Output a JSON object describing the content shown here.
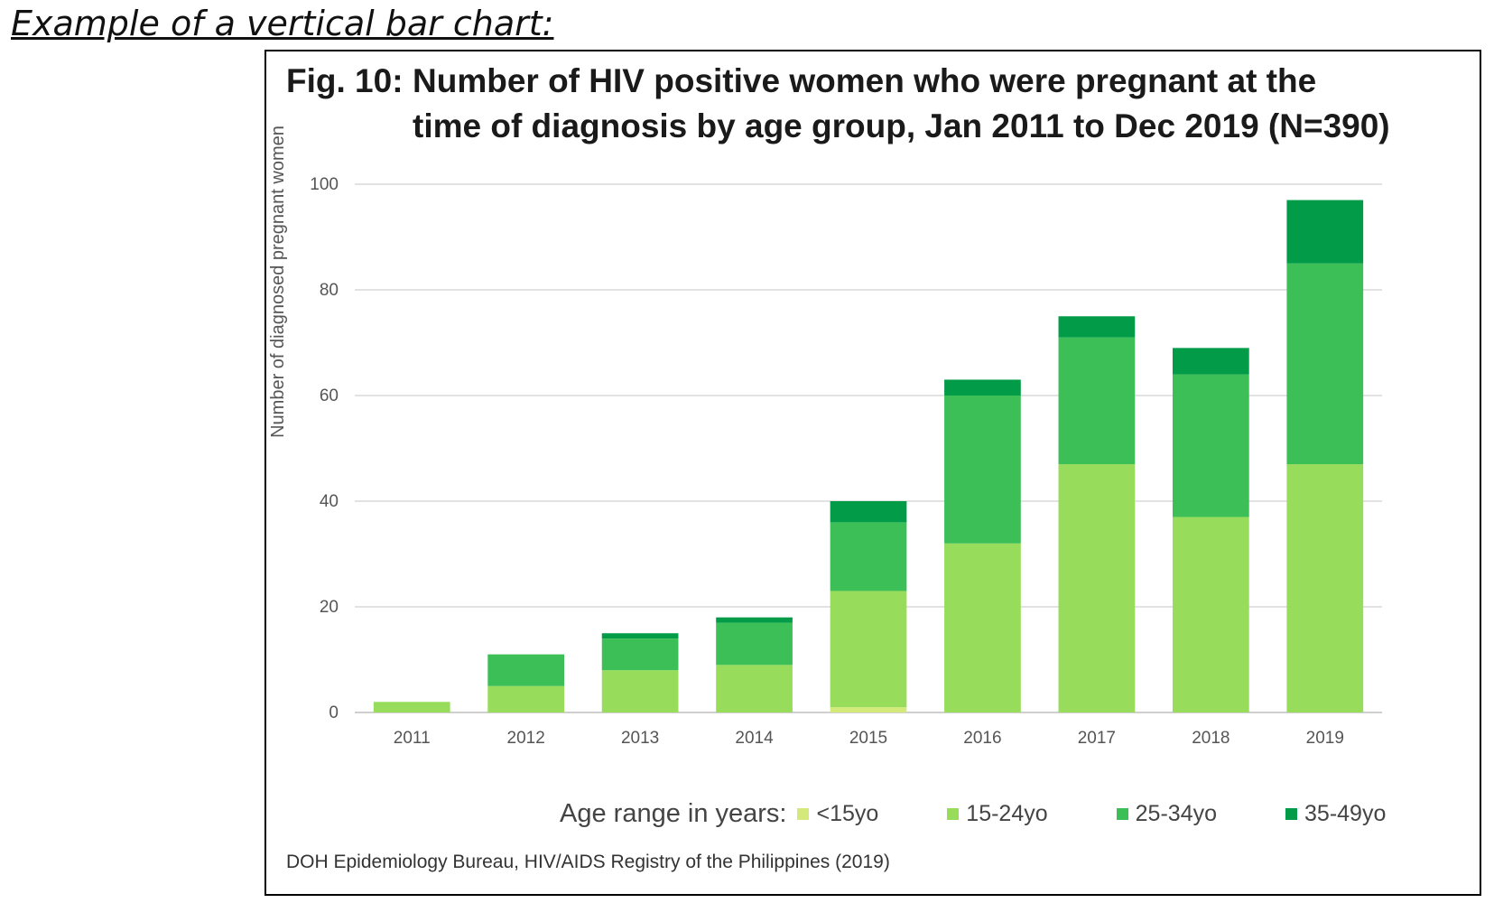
{
  "caption": "Example of a vertical bar chart:",
  "source": "DOH Epidemiology Bureau, HIV/AIDS Registry of the Philippines (2019)",
  "colors": {
    "gridline": "#d9d9d9",
    "axis": "#bfbfbf",
    "series": [
      "#d3ea7a",
      "#97dc5a",
      "#3dbf57",
      "#029c49"
    ]
  },
  "chart_data": {
    "type": "bar",
    "stacked": true,
    "title_prefix": "Fig. 10:",
    "title_line1": "Number of HIV positive women who were pregnant at the",
    "title_line2": "time of diagnosis by age group, Jan 2011 to Dec 2019 (N=390)",
    "xlabel": "",
    "ylabel": "Number of diagnosed pregnant women",
    "ylim": [
      0,
      100
    ],
    "yticks": [
      0,
      20,
      40,
      60,
      80,
      100
    ],
    "grid": true,
    "legend_title": "Age range in years:",
    "legend_position": "bottom",
    "categories": [
      "2011",
      "2012",
      "2013",
      "2014",
      "2015",
      "2016",
      "2017",
      "2018",
      "2019"
    ],
    "series": [
      {
        "name": "<15yo",
        "values": [
          0,
          0,
          0,
          0,
          1,
          0,
          0,
          0,
          0
        ]
      },
      {
        "name": "15-24yo",
        "values": [
          2,
          5,
          8,
          9,
          22,
          32,
          47,
          37,
          47
        ]
      },
      {
        "name": "25-34yo",
        "values": [
          0,
          6,
          6,
          8,
          13,
          28,
          24,
          27,
          38
        ]
      },
      {
        "name": "35-49yo",
        "values": [
          0,
          0,
          1,
          1,
          4,
          3,
          4,
          5,
          12
        ]
      }
    ]
  }
}
